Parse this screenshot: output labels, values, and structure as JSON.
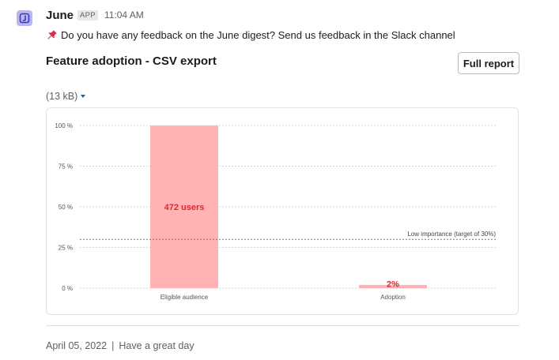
{
  "app": {
    "sender_name": "June",
    "app_badge": "APP",
    "timestamp": "11:04 AM",
    "avatar_icon": "june-logo-icon"
  },
  "message": {
    "icon": "pushpin-icon",
    "text": "Do you have any feedback on the June digest? Send us feedback in the Slack channel"
  },
  "report": {
    "title": "Feature adoption - CSV export",
    "full_report_label": "Full report",
    "file_size": "(13 kB)"
  },
  "chart_data": {
    "type": "bar",
    "categories": [
      "Eligible audience",
      "Adoption"
    ],
    "values": [
      100,
      2
    ],
    "data_labels": [
      "472 users",
      "2%"
    ],
    "yticks": [
      0,
      25,
      50,
      75,
      100
    ],
    "ytick_labels": [
      "0 %",
      "25 %",
      "50 %",
      "75 %",
      "100 %"
    ],
    "ylim": [
      0,
      100
    ],
    "grid": true,
    "bar_color": "#ffb3b5",
    "label_color": "#e0262f",
    "reference_line": {
      "value": 30,
      "label": "Low importance (target of 30%)"
    }
  },
  "footer": {
    "date": "April 05, 2022",
    "separator": "|",
    "note": "Have a great day"
  }
}
